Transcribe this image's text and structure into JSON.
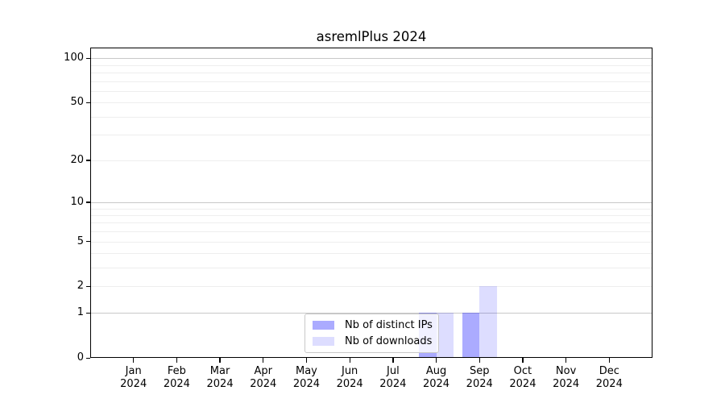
{
  "chart_data": {
    "type": "bar",
    "title": "asremlPlus 2024",
    "scale": "log1p",
    "ylim": [
      0,
      118
    ],
    "grid_on": true,
    "legend_position": "bottom-center-inside",
    "categories": [
      {
        "month": "Jan",
        "year": "2024"
      },
      {
        "month": "Feb",
        "year": "2024"
      },
      {
        "month": "Mar",
        "year": "2024"
      },
      {
        "month": "Apr",
        "year": "2024"
      },
      {
        "month": "May",
        "year": "2024"
      },
      {
        "month": "Jun",
        "year": "2024"
      },
      {
        "month": "Jul",
        "year": "2024"
      },
      {
        "month": "Aug",
        "year": "2024"
      },
      {
        "month": "Sep",
        "year": "2024"
      },
      {
        "month": "Oct",
        "year": "2024"
      },
      {
        "month": "Nov",
        "year": "2024"
      },
      {
        "month": "Dec",
        "year": "2024"
      }
    ],
    "series": [
      {
        "name": "Nb of distinct IPs",
        "fill": "rgba(0,0,255,0.33)",
        "hex_on_white": "#ababff",
        "values": [
          0,
          0,
          0,
          0,
          0,
          0,
          0,
          1,
          1,
          0,
          0,
          0
        ]
      },
      {
        "name": "Nb of downloads",
        "fill": "rgba(0,0,255,0.135)",
        "hex_on_white": "#ddddff",
        "values": [
          0,
          0,
          0,
          0,
          0,
          0,
          0,
          1,
          2,
          0,
          0,
          0
        ]
      }
    ],
    "yticks": [
      0,
      1,
      2,
      5,
      10,
      20,
      50,
      100
    ],
    "grid": {
      "major": [
        1,
        10,
        100
      ],
      "minor": [
        2,
        3,
        4,
        5,
        6,
        7,
        8,
        9,
        20,
        30,
        40,
        50,
        60,
        70,
        80,
        90
      ]
    },
    "colors": {
      "grid_major": "#c8c8c8",
      "grid_minor": "#eeeeee",
      "axis": "#000000",
      "legend_border": "#c8c8c8",
      "background": "#ffffff"
    }
  }
}
